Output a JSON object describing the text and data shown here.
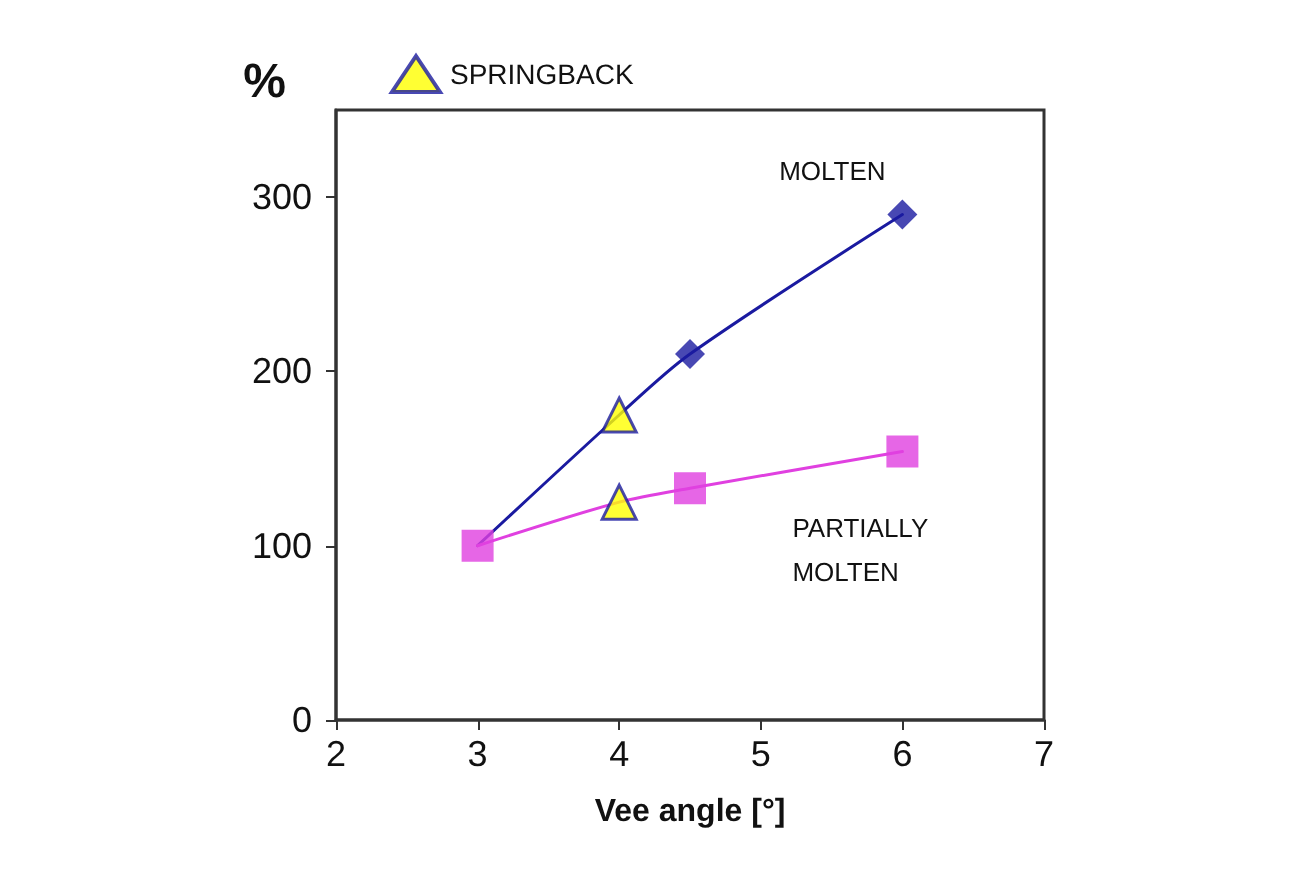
{
  "chart_data": {
    "type": "line",
    "xlabel": "Vee angle [°]",
    "ylabel": "%",
    "xlim": [
      2,
      7
    ],
    "xticks": [
      2,
      3,
      4,
      5,
      6,
      7
    ],
    "ylim": [
      0,
      350
    ],
    "yticks": [
      0,
      100,
      200,
      300
    ],
    "grid": false,
    "legend": "top left",
    "series": [
      {
        "name": "MOLTEN",
        "color": "#1a1aa0",
        "x": [
          3,
          4,
          4.5,
          6
        ],
        "values": [
          100,
          175,
          210,
          290
        ],
        "marker": "none"
      },
      {
        "type": "scatter",
        "color": "#1a1aa0",
        "x": [
          4.5,
          6
        ],
        "values": [
          210,
          290
        ],
        "marker": "diamond"
      },
      {
        "name": "PARTIALLY MOLTEN",
        "color": "#e040e0",
        "x": [
          3,
          4,
          4.5,
          6
        ],
        "values": [
          100,
          125,
          133,
          154
        ],
        "marker": "none"
      },
      {
        "type": "scatter",
        "color": "#e040e0",
        "x": [
          3,
          4.5,
          6
        ],
        "values": [
          100,
          133,
          154
        ],
        "marker": "square"
      },
      {
        "name": "SPRINGBACK",
        "type": "scatter",
        "color": "#ffff00",
        "x": [
          4,
          4
        ],
        "values": [
          175,
          125
        ],
        "marker": "triangle"
      }
    ]
  }
}
